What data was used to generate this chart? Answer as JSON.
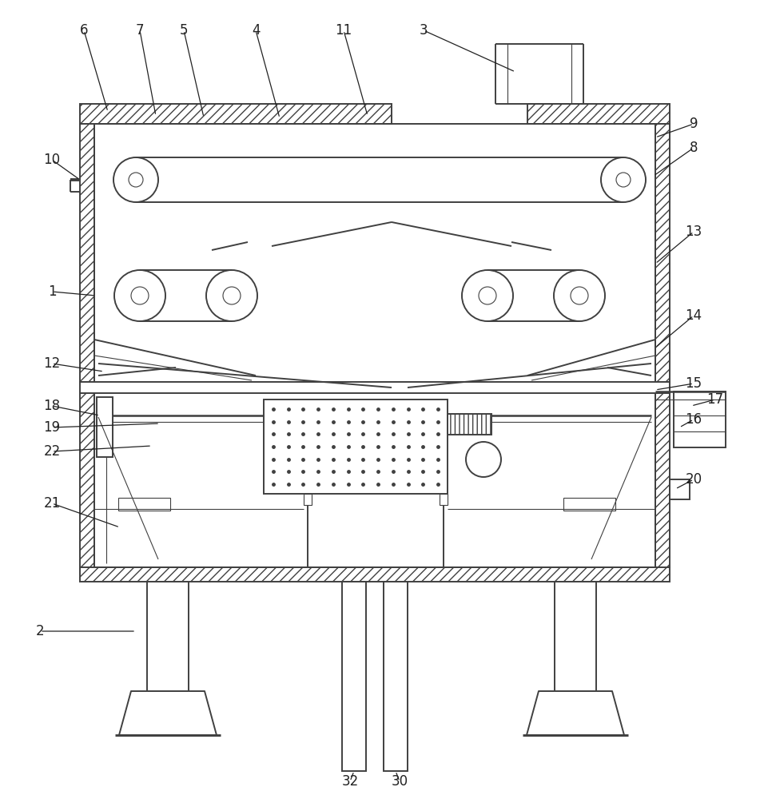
{
  "bg_color": "#ffffff",
  "line_color": "#404040",
  "lw": 1.4,
  "tlw": 0.8,
  "fs": 12
}
